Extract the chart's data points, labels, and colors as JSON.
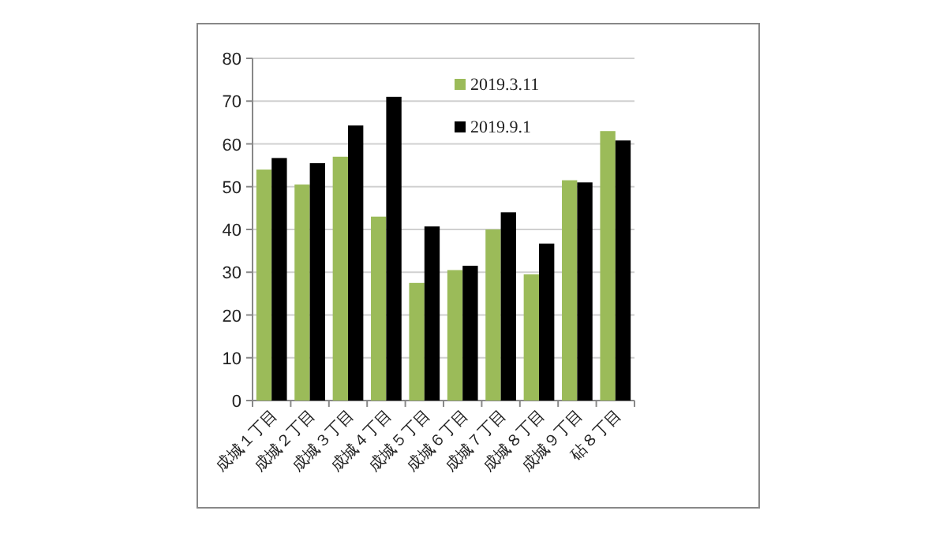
{
  "chart_data": {
    "type": "bar",
    "categories": [
      "成城１丁目",
      "成城２丁目",
      "成城３丁目",
      "成城４丁目",
      "成城５丁目",
      "成城６丁目",
      "成城７丁目",
      "成城８丁目",
      "成城９丁目",
      "砧８丁目"
    ],
    "series": [
      {
        "name": "2019.3.11",
        "color": "#9bbb59",
        "values": [
          54,
          50.5,
          57,
          43,
          27.5,
          30.5,
          40,
          29.5,
          51.5,
          63
        ]
      },
      {
        "name": "2019.9.1",
        "color": "#000000",
        "values": [
          56.7,
          55.5,
          64.3,
          71,
          40.7,
          31.5,
          44,
          36.7,
          51,
          60.8
        ]
      }
    ],
    "ylim": [
      0,
      80
    ],
    "yticks": [
      0,
      10,
      20,
      30,
      40,
      50,
      60,
      70,
      80
    ],
    "grid": "y",
    "legend": "top right"
  }
}
